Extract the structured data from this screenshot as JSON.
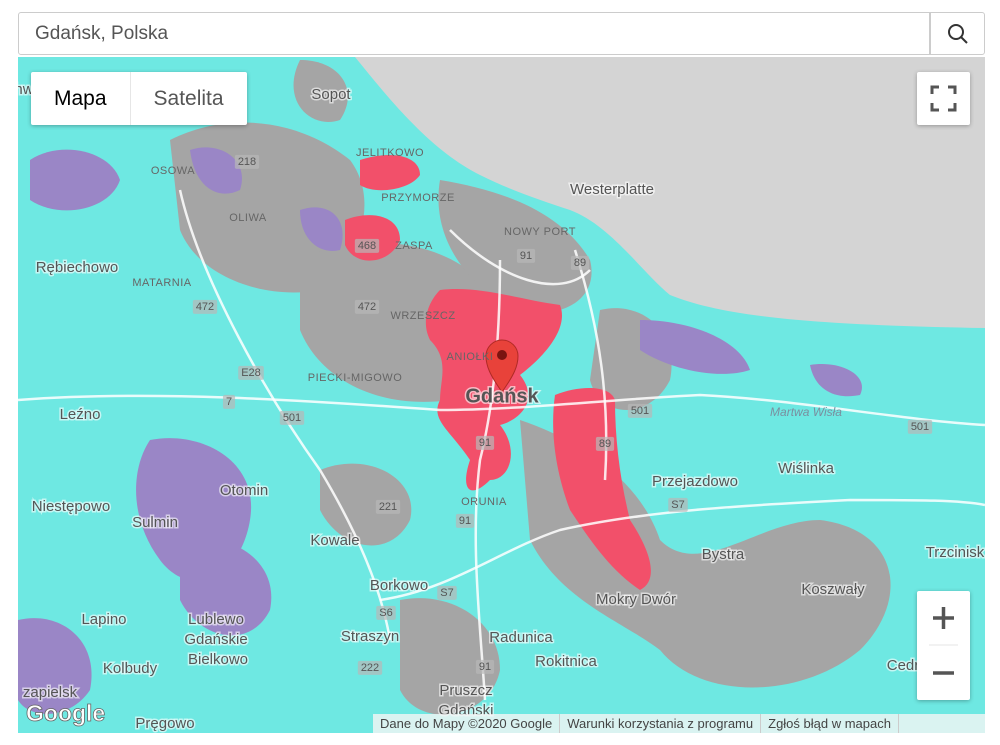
{
  "search": {
    "value": "Gdańsk, Polska"
  },
  "map_type": [
    "Mapa",
    "Satelita"
  ],
  "labels": [
    {
      "text": "hw"
    },
    {
      "text": "Sopot"
    },
    {
      "text": "JELITKOWO"
    },
    {
      "text": "OSOWA"
    },
    {
      "text": "218"
    },
    {
      "text": "PRZYMORZE"
    },
    {
      "text": "Westerplatte"
    },
    {
      "text": "OLIWA"
    },
    {
      "text": "NOWY PORT"
    },
    {
      "text": "468"
    },
    {
      "text": "ZASPA"
    },
    {
      "text": "91"
    },
    {
      "text": "89"
    },
    {
      "text": "Rębiechowo"
    },
    {
      "text": "MATARNIA"
    },
    {
      "text": "472"
    },
    {
      "text": "472"
    },
    {
      "text": "WRZESZCZ"
    },
    {
      "text": "ANIOŁKI"
    },
    {
      "text": "PIECKI-MIGOWO"
    },
    {
      "text": "E28"
    },
    {
      "text": "Gdańsk"
    },
    {
      "text": "7"
    },
    {
      "text": "501"
    },
    {
      "text": "501"
    },
    {
      "text": "Martwa Wisła"
    },
    {
      "text": "501"
    },
    {
      "text": "Leźno"
    },
    {
      "text": "91"
    },
    {
      "text": "89"
    },
    {
      "text": "Wiślinka"
    },
    {
      "text": "Przejazdowo"
    },
    {
      "text": "Otomin"
    },
    {
      "text": "Niestępowo"
    },
    {
      "text": "221"
    },
    {
      "text": "ORUNIA"
    },
    {
      "text": "S7"
    },
    {
      "text": "91"
    },
    {
      "text": "Sulmin"
    },
    {
      "text": "Kowale"
    },
    {
      "text": "Bystra"
    },
    {
      "text": "Trzcinisk"
    },
    {
      "text": "Borkowo"
    },
    {
      "text": "S7"
    },
    {
      "text": "Koszwały"
    },
    {
      "text": "S6"
    },
    {
      "text": "Mokry Dwór"
    },
    {
      "text": "Lapino"
    },
    {
      "text": "Lublewo"
    },
    {
      "text": "Gdańskie"
    },
    {
      "text": "Straszyn"
    },
    {
      "text": "Radunica"
    },
    {
      "text": "Bielkowo"
    },
    {
      "text": "Kolbudy"
    },
    {
      "text": "222"
    },
    {
      "text": "Rokitnica"
    },
    {
      "text": "91"
    },
    {
      "text": "Cedr"
    },
    {
      "text": "Pruszcz"
    },
    {
      "text": "Gdański"
    },
    {
      "text": "zapielsk"
    },
    {
      "text": "Pręgowo"
    }
  ],
  "logo": "Google",
  "footer": [
    "Dane do Mapy ©2020 Google",
    "Warunki korzystania z programu",
    "Zgłoś błąd w mapach"
  ]
}
